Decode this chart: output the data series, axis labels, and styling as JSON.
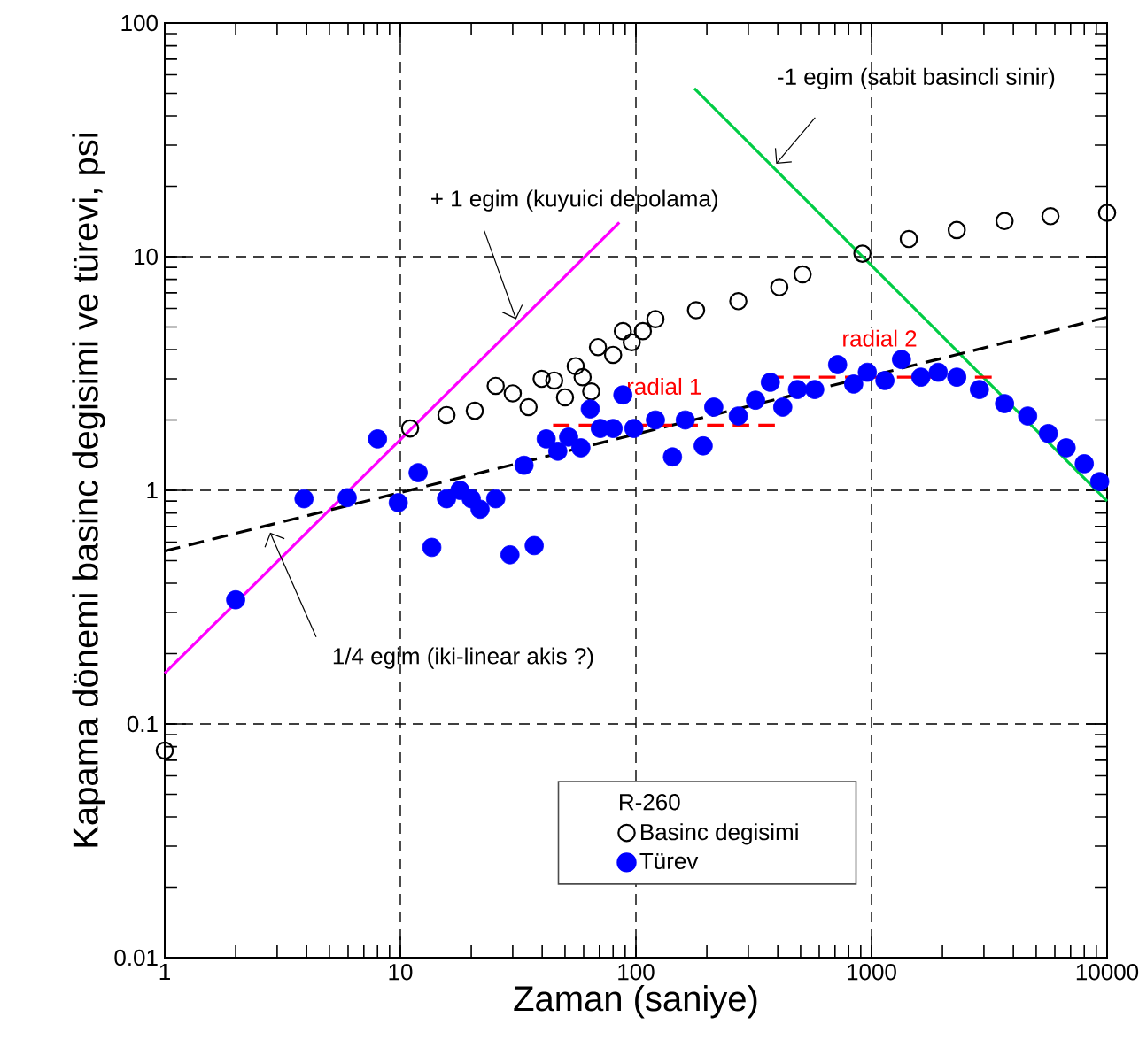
{
  "chart_data": {
    "type": "scatter",
    "xlabel": "Zaman (saniye)",
    "ylabel": "Kapama dönemi basinc degisimi ve türevi, psi",
    "legend_title": "R-260",
    "log": "xy",
    "grid": true,
    "legend": "bottom right",
    "xlim": [
      1,
      10000
    ],
    "ylim": [
      0.01,
      100
    ],
    "xticks": [
      1,
      10,
      100,
      1000,
      10000
    ],
    "yticks": [
      0.01,
      0.1,
      1,
      10,
      100
    ],
    "annotations": [
      {
        "text": "+ 1 egim (kuyuici depolama)",
        "x": 31,
        "y": 5.4
      },
      {
        "text": "-1 egim (sabit basincli sinir)",
        "x": 394,
        "y": 25
      },
      {
        "text": "1/4 egim (iki-linear akis ?)",
        "x": 2.8,
        "y": 0.66
      }
    ],
    "series": [
      {
        "name": "Basinc degisimi",
        "marker": "circle",
        "color": "#000000",
        "x": [
          1,
          11,
          15.7,
          20.7,
          25.4,
          30,
          35,
          39.8,
          45,
          50,
          55.5,
          59.4,
          64.6,
          69,
          80,
          88,
          96,
          107,
          121,
          180,
          272,
          406,
          510,
          915,
          1440,
          2300,
          3670,
          5750,
          10000
        ],
        "values": [
          0.077,
          1.84,
          2.1,
          2.19,
          2.8,
          2.6,
          2.27,
          3.0,
          2.95,
          2.5,
          3.4,
          3.05,
          2.65,
          4.1,
          3.8,
          4.8,
          4.3,
          4.8,
          5.4,
          5.9,
          6.45,
          7.4,
          8.4,
          10.3,
          11.9,
          13,
          14.2,
          14.9,
          15.4
        ]
      },
      {
        "name": "Türev",
        "marker": "circle",
        "color": "#0000ff",
        "x": [
          2,
          3.9,
          5.95,
          8,
          9.8,
          11.9,
          13.6,
          15.7,
          17.9,
          20,
          21.8,
          25.4,
          29.2,
          33.5,
          37,
          41.6,
          46.6,
          51.8,
          58.4,
          64,
          70.6,
          80,
          88,
          98,
          121,
          143,
          162,
          193,
          214,
          272,
          322,
          372,
          420,
          485,
          574,
          718,
          840,
          960,
          1140,
          1340,
          1620,
          1920,
          2300,
          2870,
          3670,
          4600,
          5630,
          6700,
          8000,
          9300
        ],
        "values": [
          0.34,
          0.92,
          0.93,
          1.66,
          0.885,
          1.19,
          0.57,
          0.92,
          1.0,
          0.92,
          0.83,
          0.92,
          0.53,
          1.28,
          0.58,
          1.66,
          1.47,
          1.69,
          1.52,
          2.23,
          1.84,
          1.84,
          2.56,
          1.84,
          2.0,
          1.39,
          2.0,
          1.55,
          2.27,
          2.08,
          2.43,
          2.9,
          2.27,
          2.7,
          2.7,
          3.45,
          2.85,
          3.2,
          2.95,
          3.63,
          3.05,
          3.2,
          3.05,
          2.7,
          2.35,
          2.08,
          1.75,
          1.52,
          1.3,
          1.09
        ]
      },
      {
        "type": "line",
        "marker": "none",
        "color": "#ff00ff",
        "line_style": "solid",
        "x": [
          1,
          85
        ],
        "values": [
          0.165,
          14
        ]
      },
      {
        "type": "line",
        "marker": "none",
        "color": "#00cc44",
        "line_style": "solid",
        "x": [
          177,
          10000
        ],
        "values": [
          52.5,
          0.9
        ]
      },
      {
        "type": "line",
        "marker": "none",
        "color": "#000000",
        "line_style": "dashed",
        "x": [
          1,
          10000
        ],
        "values": [
          0.55,
          5.5
        ]
      },
      {
        "name": "radial 1",
        "type": "line",
        "marker": "none",
        "color": "#ff0000",
        "line_style": "dashed",
        "x": [
          44.5,
          390
        ],
        "values": [
          1.9,
          1.9
        ]
      },
      {
        "name": "radial 2",
        "type": "line",
        "marker": "none",
        "color": "#ff0000",
        "line_style": "dashed",
        "x": [
          360,
          3250
        ],
        "values": [
          3.05,
          3.05
        ]
      }
    ]
  }
}
